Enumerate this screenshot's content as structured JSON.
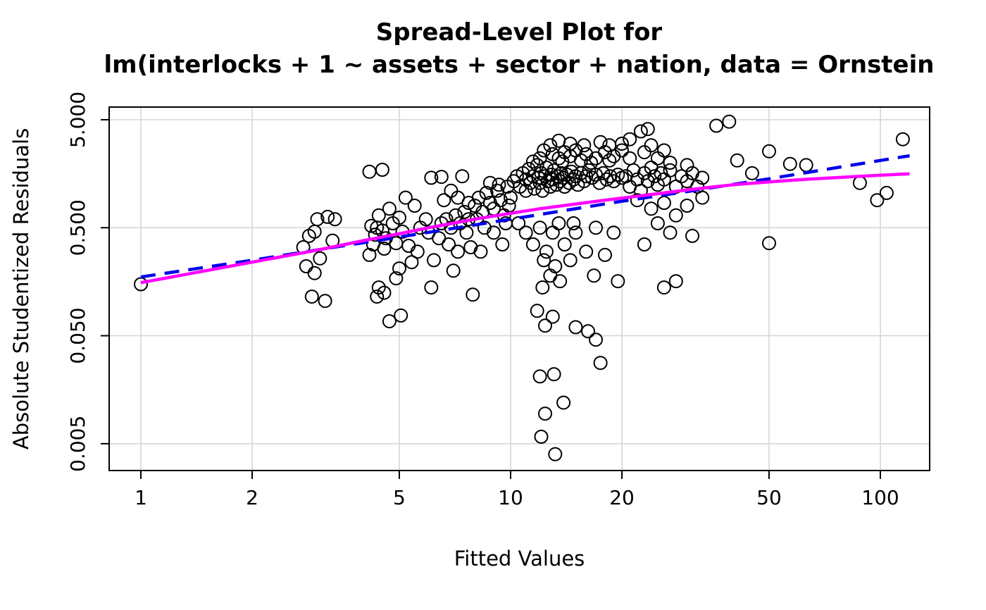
{
  "figure": {
    "background": "#ffffff"
  },
  "chart_data": {
    "type": "scatter",
    "title": "Spread-Level Plot for",
    "subtitle": "lm(interlocks + 1 ~ assets + sector + nation, data = Ornstein",
    "xlabel": "Fitted Values",
    "ylabel": "Absolute Studentized Residuals",
    "x_scale": "log",
    "y_scale": "log",
    "xlim": [
      0.82,
      136
    ],
    "ylim": [
      0.0028,
      6.6
    ],
    "grid": true,
    "grid_color": "#d6d6d6",
    "point_color": "#000000",
    "x_ticks": [
      1,
      2,
      5,
      10,
      20,
      50,
      100
    ],
    "x_tick_labels": [
      "1",
      "2",
      "5",
      "10",
      "20",
      "50",
      "100"
    ],
    "y_ticks": [
      5.0,
      0.5,
      0.05,
      0.005
    ],
    "y_tick_labels": [
      "5.000",
      "0.500",
      "0.050",
      "0.005"
    ],
    "points": [
      [
        1,
        0.15
      ],
      [
        2.75,
        0.33
      ],
      [
        2.85,
        0.42
      ],
      [
        2.95,
        0.46
      ],
      [
        3.0,
        0.6
      ],
      [
        3.2,
        0.63
      ],
      [
        3.35,
        0.6
      ],
      [
        2.9,
        0.115
      ],
      [
        3.15,
        0.105
      ],
      [
        2.8,
        0.22
      ],
      [
        3.05,
        0.26
      ],
      [
        3.3,
        0.38
      ],
      [
        2.95,
        0.19
      ],
      [
        4.15,
        1.65
      ],
      [
        4.5,
        1.72
      ],
      [
        4.2,
        0.52
      ],
      [
        4.35,
        0.5
      ],
      [
        4.5,
        0.47
      ],
      [
        4.3,
        0.43
      ],
      [
        4.6,
        0.4
      ],
      [
        4.25,
        0.35
      ],
      [
        4.55,
        0.32
      ],
      [
        4.8,
        0.55
      ],
      [
        5.0,
        0.62
      ],
      [
        5.1,
        0.46
      ],
      [
        4.9,
        0.36
      ],
      [
        5.3,
        0.34
      ],
      [
        4.4,
        0.14
      ],
      [
        4.55,
        0.125
      ],
      [
        4.35,
        0.115
      ],
      [
        4.9,
        0.17
      ],
      [
        5.4,
        0.24
      ],
      [
        5.6,
        0.3
      ],
      [
        5.2,
        0.95
      ],
      [
        5.5,
        0.8
      ],
      [
        4.7,
        0.75
      ],
      [
        4.4,
        0.65
      ],
      [
        4.15,
        0.28
      ],
      [
        5.0,
        0.21
      ],
      [
        4.7,
        0.068
      ],
      [
        5.05,
        0.077
      ],
      [
        5.7,
        0.5
      ],
      [
        5.9,
        0.6
      ],
      [
        6.1,
        1.45
      ],
      [
        6.5,
        1.48
      ],
      [
        7.4,
        1.5
      ],
      [
        6.5,
        0.55
      ],
      [
        6.7,
        0.6
      ],
      [
        6.9,
        0.5
      ],
      [
        7.1,
        0.65
      ],
      [
        7.3,
        0.55
      ],
      [
        7.5,
        0.7
      ],
      [
        7.7,
        0.6
      ],
      [
        6.4,
        0.4
      ],
      [
        6.8,
        0.35
      ],
      [
        7.2,
        0.3
      ],
      [
        7.6,
        0.45
      ],
      [
        6.2,
        0.25
      ],
      [
        7.0,
        0.2
      ],
      [
        7.8,
        0.33
      ],
      [
        6.6,
        0.9
      ],
      [
        7.2,
        0.95
      ],
      [
        7.7,
        0.85
      ],
      [
        6.9,
        1.1
      ],
      [
        6.0,
        0.45
      ],
      [
        6.1,
        0.14
      ],
      [
        7.9,
        0.12
      ],
      [
        8,
        0.8
      ],
      [
        8.2,
        0.95
      ],
      [
        8.4,
        0.7
      ],
      [
        8.6,
        1.05
      ],
      [
        8.8,
        0.85
      ],
      [
        9,
        0.75
      ],
      [
        9.2,
        1.1
      ],
      [
        9.4,
        0.9
      ],
      [
        9.6,
        0.65
      ],
      [
        9.8,
        1.2
      ],
      [
        8.5,
        0.5
      ],
      [
        9,
        0.45
      ],
      [
        9.5,
        0.35
      ],
      [
        8.3,
        0.3
      ],
      [
        9.7,
        0.55
      ],
      [
        8.8,
        1.3
      ],
      [
        9.3,
        1.25
      ],
      [
        8.1,
        0.6
      ],
      [
        10,
        0.95
      ],
      [
        9.9,
        0.8
      ],
      [
        10.2,
        1.35
      ],
      [
        10.4,
        1.5
      ],
      [
        10.6,
        1.2
      ],
      [
        10.8,
        1.6
      ],
      [
        11,
        1.4
      ],
      [
        11,
        1.1
      ],
      [
        11.2,
        1.75
      ],
      [
        11.3,
        1.3
      ],
      [
        11.5,
        1.5
      ],
      [
        11.6,
        1.15
      ],
      [
        11.8,
        1.9
      ],
      [
        11.9,
        1.45
      ],
      [
        12,
        1.3
      ],
      [
        12.1,
        1.6
      ],
      [
        12.2,
        1.1
      ],
      [
        12.4,
        1.5
      ],
      [
        12.5,
        1.8
      ],
      [
        12.6,
        1.35
      ],
      [
        12.8,
        1.2
      ],
      [
        12.9,
        1.55
      ],
      [
        13,
        1.4
      ],
      [
        13.1,
        1.7
      ],
      [
        13.3,
        1.25
      ],
      [
        13.4,
        1.5
      ],
      [
        13.6,
        1.35
      ],
      [
        13.7,
        1.6
      ],
      [
        13.9,
        1.45
      ],
      [
        14,
        1.2
      ],
      [
        14.2,
        1.55
      ],
      [
        14.4,
        1.3
      ],
      [
        14.6,
        1.65
      ],
      [
        14.8,
        1.4
      ],
      [
        15,
        1.5
      ],
      [
        15.2,
        1.25
      ],
      [
        15.5,
        1.6
      ],
      [
        15.8,
        1.35
      ],
      [
        16,
        1.5
      ],
      [
        16.3,
        1.7
      ],
      [
        16.6,
        1.45
      ],
      [
        17,
        1.55
      ],
      [
        17.4,
        1.3
      ],
      [
        17.8,
        1.6
      ],
      [
        18.2,
        1.4
      ],
      [
        18.6,
        1.5
      ],
      [
        19,
        1.35
      ],
      [
        19.5,
        1.55
      ],
      [
        20,
        1.45
      ],
      [
        12.3,
        2.6
      ],
      [
        13,
        2.4
      ],
      [
        13.5,
        2.2
      ],
      [
        14,
        2.5
      ],
      [
        14.5,
        2.3
      ],
      [
        15,
        2.6
      ],
      [
        15.5,
        2.1
      ],
      [
        16,
        2.4
      ],
      [
        17,
        2.2
      ],
      [
        18,
        2.5
      ],
      [
        19,
        2.3
      ],
      [
        20,
        2.6
      ],
      [
        12,
        2.2
      ],
      [
        11.5,
        2.05
      ],
      [
        13.8,
        2.05
      ],
      [
        16.5,
        2.0
      ],
      [
        18.5,
        2.1
      ],
      [
        13.5,
        3.2
      ],
      [
        14.5,
        3.0
      ],
      [
        12.8,
        2.9
      ],
      [
        15.8,
        2.9
      ],
      [
        17.5,
        3.1
      ],
      [
        18.5,
        2.9
      ],
      [
        20,
        3.0
      ],
      [
        21,
        3.3
      ],
      [
        22.5,
        3.9
      ],
      [
        23.5,
        4.1
      ],
      [
        10.5,
        0.55
      ],
      [
        11,
        0.45
      ],
      [
        11.5,
        0.35
      ],
      [
        12,
        0.5
      ],
      [
        12.5,
        0.3
      ],
      [
        12.3,
        0.25
      ],
      [
        13,
        0.45
      ],
      [
        13.2,
        0.22
      ],
      [
        13.5,
        0.55
      ],
      [
        14,
        0.35
      ],
      [
        14.5,
        0.25
      ],
      [
        15,
        0.45
      ],
      [
        12.8,
        0.18
      ],
      [
        13.6,
        0.16
      ],
      [
        12.2,
        0.14
      ],
      [
        14.8,
        0.55
      ],
      [
        16,
        0.3
      ],
      [
        17,
        0.5
      ],
      [
        18,
        0.28
      ],
      [
        19,
        0.45
      ],
      [
        16.8,
        0.18
      ],
      [
        19.5,
        0.16
      ],
      [
        20.5,
        1.5
      ],
      [
        21,
        1.2
      ],
      [
        21.5,
        1.7
      ],
      [
        22,
        1.4
      ],
      [
        22.5,
        1.1
      ],
      [
        23,
        1.6
      ],
      [
        23.5,
        1.35
      ],
      [
        24,
        1.8
      ],
      [
        24.5,
        1.5
      ],
      [
        25,
        1.25
      ],
      [
        25.5,
        1.6
      ],
      [
        26,
        1.4
      ],
      [
        27,
        1.7
      ],
      [
        28,
        1.2
      ],
      [
        29,
        1.5
      ],
      [
        30,
        1.35
      ],
      [
        31,
        1.6
      ],
      [
        32,
        1.2
      ],
      [
        33,
        1.45
      ],
      [
        21,
        2.2
      ],
      [
        23,
        2.5
      ],
      [
        25,
        2.2
      ],
      [
        27,
        2.0
      ],
      [
        30,
        1.9
      ],
      [
        22,
        0.9
      ],
      [
        24,
        0.75
      ],
      [
        26,
        0.85
      ],
      [
        28,
        0.65
      ],
      [
        30,
        0.8
      ],
      [
        25,
        0.55
      ],
      [
        27,
        0.45
      ],
      [
        23,
        0.35
      ],
      [
        26,
        0.14
      ],
      [
        28,
        0.16
      ],
      [
        31,
        0.42
      ],
      [
        33,
        0.95
      ],
      [
        24,
        2.9
      ],
      [
        26,
        2.6
      ],
      [
        36,
        4.4
      ],
      [
        39,
        4.8
      ],
      [
        115,
        3.3
      ],
      [
        104,
        1.05
      ],
      [
        98,
        0.9
      ],
      [
        50,
        0.36
      ],
      [
        50,
        2.55
      ],
      [
        57,
        1.95
      ],
      [
        63,
        1.9
      ],
      [
        88,
        1.3
      ],
      [
        41,
        2.1
      ],
      [
        45,
        1.6
      ],
      [
        13.2,
        0.004
      ],
      [
        12.1,
        0.0058
      ],
      [
        12.4,
        0.0095
      ],
      [
        13.9,
        0.012
      ],
      [
        12,
        0.021
      ],
      [
        13.1,
        0.022
      ],
      [
        17.5,
        0.028
      ],
      [
        16.2,
        0.055
      ],
      [
        17,
        0.046
      ],
      [
        11.8,
        0.085
      ],
      [
        13,
        0.075
      ],
      [
        12.4,
        0.062
      ],
      [
        15,
        0.06
      ]
    ],
    "lines": [
      {
        "name": "power-fit-line",
        "style": "dashed",
        "color": "#0000ee",
        "points": [
          [
            1,
            0.175
          ],
          [
            2,
            0.25
          ],
          [
            5,
            0.41
          ],
          [
            10,
            0.6
          ],
          [
            20,
            0.88
          ],
          [
            30,
            1.08
          ],
          [
            50,
            1.42
          ],
          [
            100,
            2.1
          ],
          [
            120,
            2.32
          ]
        ]
      },
      {
        "name": "robust-smooth-line",
        "style": "solid",
        "color": "#ff00ff",
        "points": [
          [
            1,
            0.155
          ],
          [
            2,
            0.24
          ],
          [
            3,
            0.31
          ],
          [
            4,
            0.38
          ],
          [
            5,
            0.44
          ],
          [
            6,
            0.5
          ],
          [
            8,
            0.6
          ],
          [
            10,
            0.68
          ],
          [
            12,
            0.75
          ],
          [
            15,
            0.83
          ],
          [
            18,
            0.9
          ],
          [
            22,
            0.98
          ],
          [
            26,
            1.05
          ],
          [
            30,
            1.12
          ],
          [
            35,
            1.19
          ],
          [
            40,
            1.25
          ],
          [
            50,
            1.33
          ],
          [
            60,
            1.39
          ],
          [
            80,
            1.47
          ],
          [
            100,
            1.53
          ],
          [
            120,
            1.58
          ]
        ]
      }
    ]
  }
}
